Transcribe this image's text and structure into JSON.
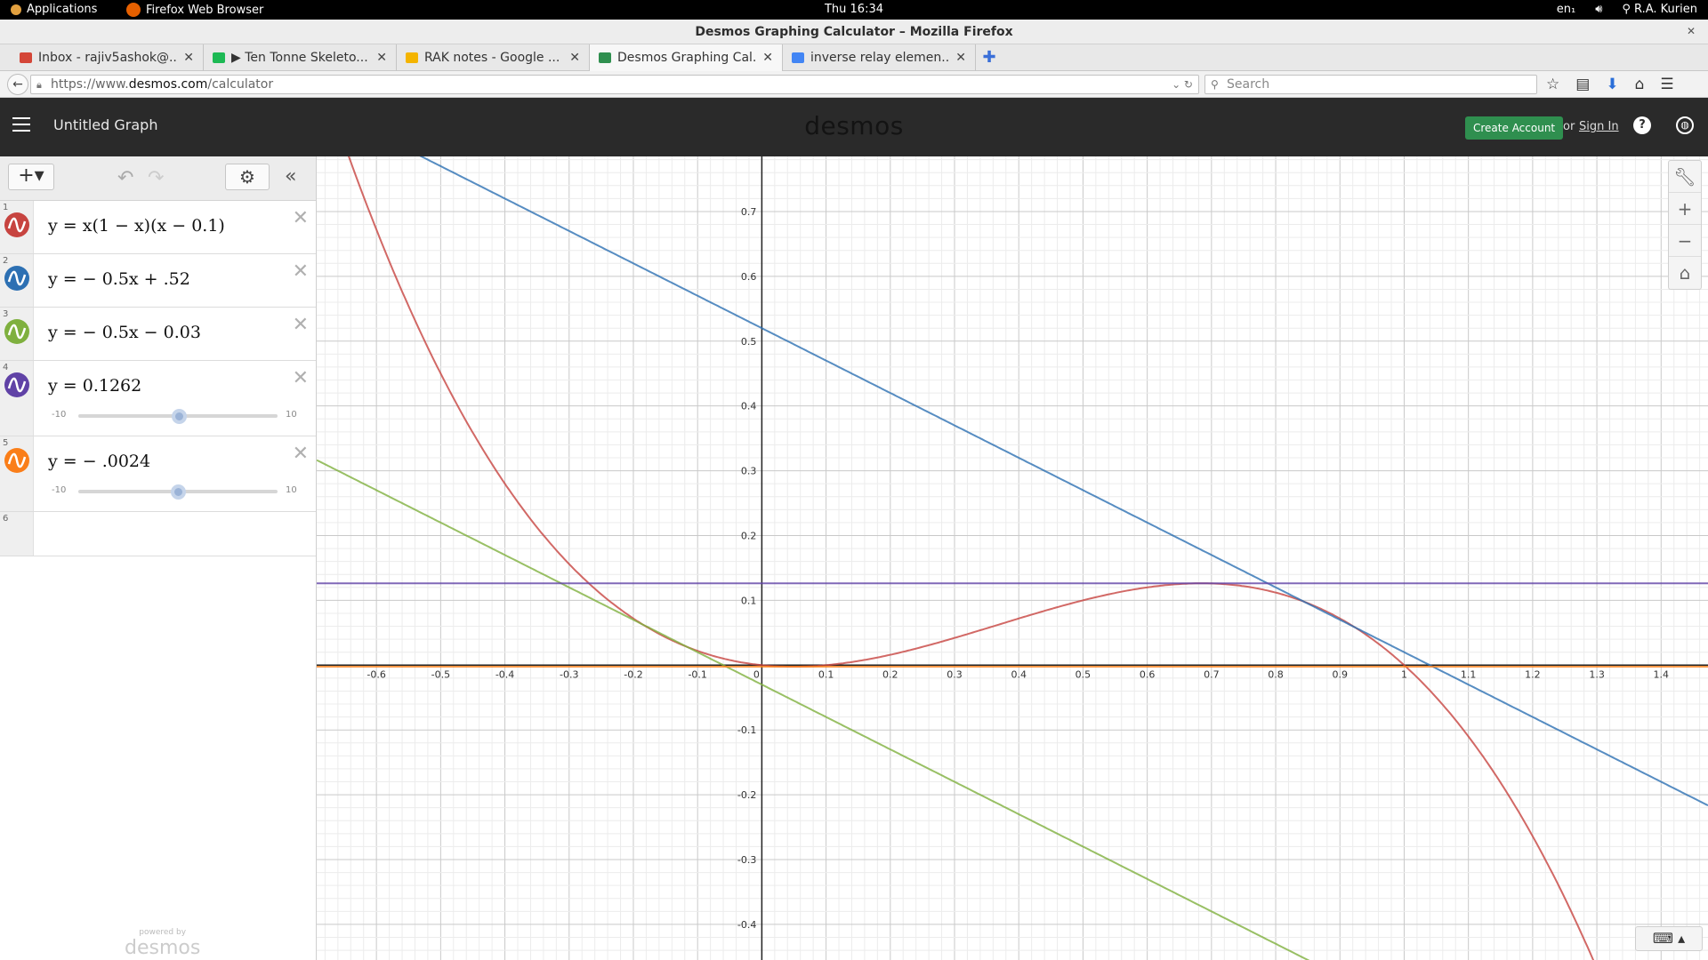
{
  "system_bar": {
    "apps_label": "Applications",
    "browser_label": "Firefox Web Browser",
    "clock": "Thu 16:34",
    "lang": "en₁",
    "volume_icon": "volume-icon",
    "user": "R.A. Kurien"
  },
  "window": {
    "title": "Desmos Graphing Calculator – Mozilla Firefox"
  },
  "tabs": [
    {
      "label": "Inbox - rajiv5ashok@...",
      "icon": "gmail-icon",
      "color": "#d44638"
    },
    {
      "label": "▶ Ten Tonne Skeleto...",
      "icon": "spotify-icon",
      "color": "#1db954"
    },
    {
      "label": "RAK notes - Google ...",
      "icon": "drive-icon",
      "color": "#f4b400"
    },
    {
      "label": "Desmos Graphing Cal...",
      "icon": "desmos-icon",
      "color": "#2f8f4f",
      "active": true
    },
    {
      "label": "inverse relay elemen...",
      "icon": "google-icon",
      "color": "#4285f4"
    }
  ],
  "url": {
    "prefix": "https://www.",
    "host": "desmos.com",
    "path": "/calculator"
  },
  "search": {
    "placeholder": "Search"
  },
  "app_header": {
    "title": "Untitled Graph",
    "logo": "desmos",
    "create_account": "Create Account",
    "or": "or",
    "sign_in": "Sign In",
    "help": "?"
  },
  "expressions": [
    {
      "index": "1",
      "latex": "y = x(1 − x)(x − 0.1)",
      "color": "#c74440"
    },
    {
      "index": "2",
      "latex": "y = − 0.5x + .52",
      "color": "#2d70b3"
    },
    {
      "index": "3",
      "latex": "y = − 0.5x − 0.03",
      "color": "#7fb03f"
    },
    {
      "index": "4",
      "latex": "y = 0.1262",
      "color": "#6042a6",
      "slider": {
        "min": "-10",
        "max": "10",
        "value": 0.1262
      }
    },
    {
      "index": "5",
      "latex": "y = − .0024",
      "color": "#fa7e19",
      "slider": {
        "min": "-10",
        "max": "10",
        "value": -0.0024
      }
    },
    {
      "index": "6",
      "latex": ""
    }
  ],
  "powered_by": {
    "small": "powered by",
    "brand": "desmos"
  },
  "chart_data": {
    "type": "line",
    "xlim": [
      -0.693,
      1.473
    ],
    "ylim": [
      -0.455,
      0.785
    ],
    "grid": true,
    "x_ticks": [
      "-0.6",
      "-0.5",
      "-0.4",
      "-0.3",
      "-0.2",
      "-0.1",
      "0",
      "0.1",
      "0.2",
      "0.3",
      "0.4",
      "0.5",
      "0.6",
      "0.7",
      "0.8",
      "0.9",
      "1",
      "1.1",
      "1.2",
      "1.3",
      "1.4"
    ],
    "y_ticks": [
      "0.7",
      "0.6",
      "0.5",
      "0.4",
      "0.3",
      "0.2",
      "0.1",
      "-0.1",
      "-0.2",
      "-0.3",
      "-0.4"
    ],
    "series": [
      {
        "expr": "x(1-x)(x-0.1)",
        "color": "#c74440"
      },
      {
        "expr": "-0.5x+0.52",
        "color": "#2d70b3"
      },
      {
        "expr": "-0.5x-0.03",
        "color": "#7fb03f"
      },
      {
        "expr": "0.1262",
        "color": "#6042a6"
      },
      {
        "expr": "-0.0024",
        "color": "#fa7e19"
      }
    ]
  }
}
